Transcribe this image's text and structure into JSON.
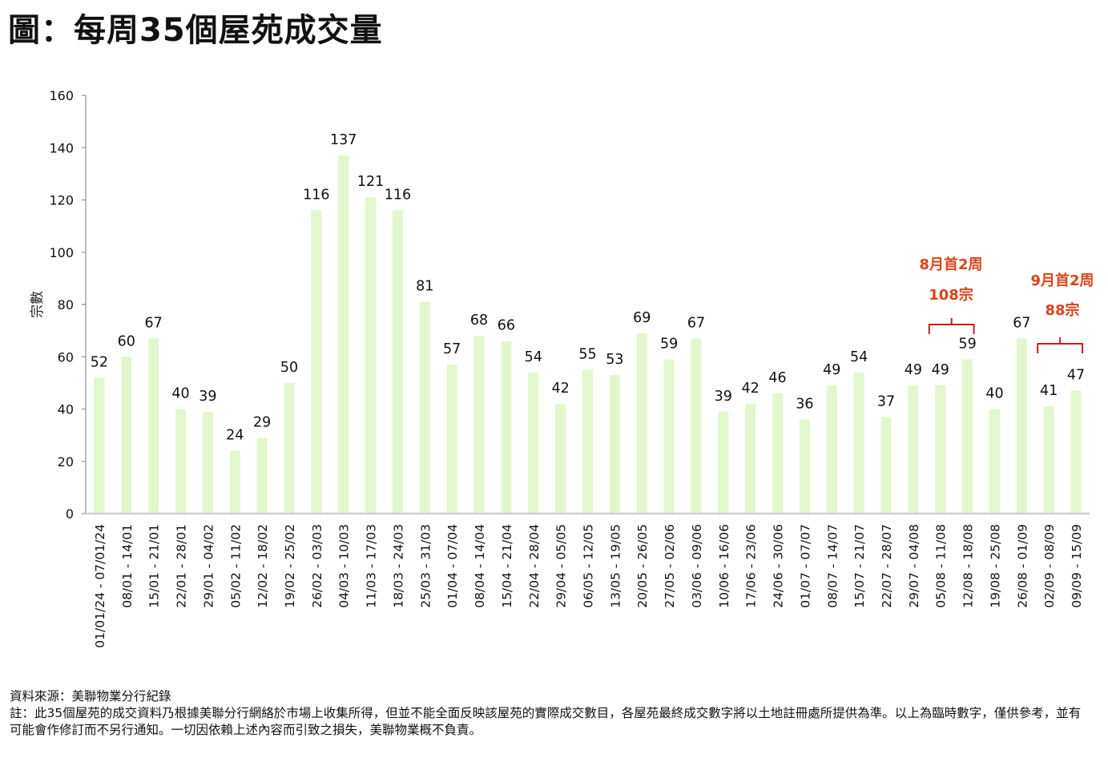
{
  "header": {
    "title": "圖：每周35個屋苑成交量"
  },
  "colors": {
    "bar": "#e2f7cc",
    "axis": "#a6a6a6",
    "annotation_text": "#d9441a",
    "annotation_bracket": "#c81e1e"
  },
  "chart_data": {
    "type": "bar",
    "title": "圖：每周35個屋苑成交量",
    "xlabel": "",
    "ylabel": "宗數",
    "ylim": [
      0,
      160
    ],
    "yticks": [
      0,
      20,
      40,
      60,
      80,
      100,
      120,
      140,
      160
    ],
    "grid": false,
    "legend": "none",
    "categories": [
      "01/01/24 - 07/01/24",
      "08/01 - 14/01",
      "15/01 - 21/01",
      "22/01 - 28/01",
      "29/01 - 04/02",
      "05/02 - 11/02",
      "12/02 - 18/02",
      "19/02 - 25/02",
      "26/02 - 03/03",
      "04/03 - 10/03",
      "11/03 - 17/03",
      "18/03 - 24/03",
      "25/03 - 31/03",
      "01/04 - 07/04",
      "08/04 - 14/04",
      "15/04 - 21/04",
      "22/04 - 28/04",
      "29/04 - 05/05",
      "06/05 - 12/05",
      "13/05 - 19/05",
      "20/05 - 26/05",
      "27/05 - 02/06",
      "03/06 - 09/06",
      "10/06 - 16/06",
      "17/06 - 23/06",
      "24/06 - 30/06",
      "01/07 - 07/07",
      "08/07 - 14/07",
      "15/07 - 21/07",
      "22/07 - 28/07",
      "29/07 - 04/08",
      "05/08 - 11/08",
      "12/08 - 18/08",
      "19/08 - 25/08",
      "26/08 - 01/09",
      "02/09 - 08/09",
      "09/09 - 15/09"
    ],
    "values": [
      52,
      60,
      67,
      40,
      39,
      24,
      29,
      50,
      116,
      137,
      121,
      116,
      81,
      57,
      68,
      66,
      54,
      42,
      55,
      53,
      69,
      59,
      67,
      39,
      42,
      46,
      36,
      49,
      54,
      37,
      49,
      49,
      59,
      40,
      67,
      41,
      47
    ],
    "annotations": [
      {
        "line1": "8月首2周",
        "line2": "108宗",
        "bracket_from_index": 31,
        "bracket_to_index": 32
      },
      {
        "line1": "9月首2周",
        "line2": "88宗",
        "bracket_from_index": 35,
        "bracket_to_index": 36
      }
    ]
  },
  "footer": {
    "source": "資料來源：美聯物業分行紀錄",
    "note": "註：此35個屋苑的成交資料乃根據美聯分行網絡於市場上收集所得，但並不能全面反映該屋苑的實際成交數目，各屋苑最終成交數字將以土地註冊處所提供為準。以上為臨時數字，僅供參考，並有可能會作修訂而不另行通知。一切因依賴上述內容而引致之損失，美聯物業概不負責。"
  }
}
